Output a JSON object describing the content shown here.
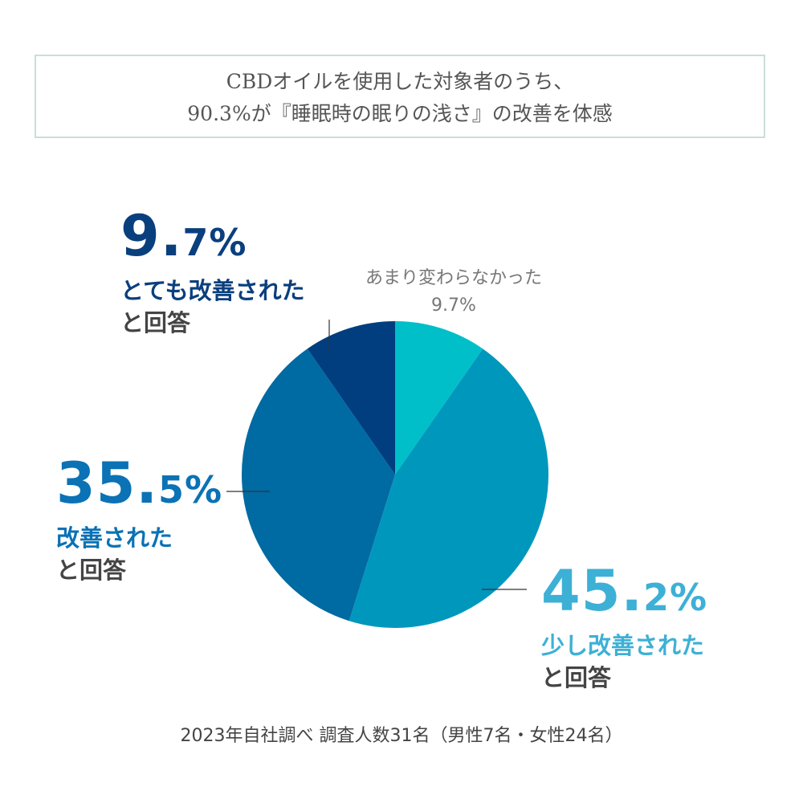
{
  "header": {
    "line1": "CBDオイルを使用した対象者のうち、",
    "line2": "90.3%が『睡眠時の眠りの浅さ』の改善を体感"
  },
  "chart_data": {
    "type": "pie",
    "start_angle_deg": 0,
    "direction": "clockwise",
    "slices": [
      {
        "label": "あまり変わらなかった",
        "value": 9.7,
        "color": "#00bfc8"
      },
      {
        "label": "少し改善された",
        "value": 45.2,
        "color": "#0097bd"
      },
      {
        "label": "改善された",
        "value": 35.5,
        "color": "#006aa2"
      },
      {
        "label": "とても改善された",
        "value": 9.7,
        "color": "#003e80"
      }
    ]
  },
  "labels": {
    "very_improved": {
      "int": "9.",
      "dec": "7%",
      "desc": "とても改善された",
      "resp": "と回答",
      "color": "#0a3f7e"
    },
    "improved": {
      "int": "35.",
      "dec": "5%",
      "desc": "改善された",
      "resp": "と回答",
      "color": "#0a72b5"
    },
    "slightly_improved": {
      "int": "45.",
      "dec": "2%",
      "desc": "少し改善された",
      "resp": "と回答",
      "color": "#3db0d6"
    },
    "no_change": {
      "text": "あまり変わらなかった",
      "value": "9.7%"
    }
  },
  "footer": "2023年自社調べ 調査人数31名（男性7名・女性24名）"
}
